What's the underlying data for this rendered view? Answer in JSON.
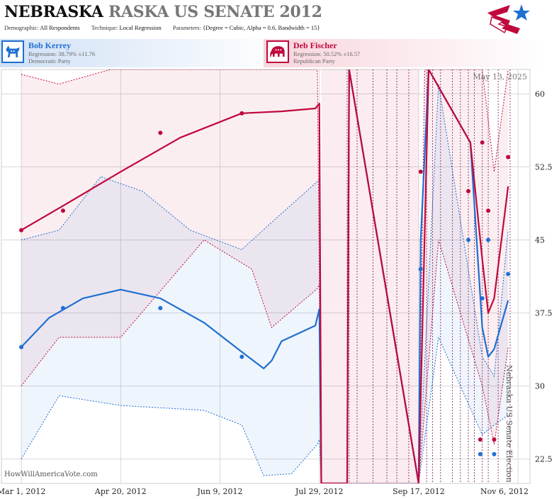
{
  "header": {
    "title_state": "NEBRASKA",
    "title_rest": "RASKA US SENATE 2012",
    "demographic_label": "Demographic:",
    "demographic_value": "All Respondents",
    "technique_label": "Technique:",
    "technique_value": "Local Regression",
    "parameters_label": "Parameters:",
    "parameters_value": "{Degree = Cubic, Alpha = 0.6, Bandwidth = 15}"
  },
  "candidates": [
    {
      "name": "Bob Kerrey",
      "regression": "Regression: 38.79% ±11.76",
      "party": "Democratic Party",
      "color": "#1f6fd1",
      "icon": "donkey-icon"
    },
    {
      "name": "Deb Fischer",
      "regression": "Regression: 50.52% ±16.57",
      "party": "Republican Party",
      "color": "#c0083c",
      "icon": "elephant-icon"
    }
  ],
  "chart_data": {
    "type": "scatter",
    "date_label": "May 13, 2025",
    "side_label": "Nebraska US Senate Election",
    "watermark": "HowWillAmericaVote.com",
    "x_ticks": [
      "Mar 1, 2012",
      "Apr 20, 2012",
      "Jun 9, 2012",
      "Jul 29, 2012",
      "Sep 17, 2012",
      "Nov 6, 2012"
    ],
    "y_ticks": [
      "22.5",
      "30",
      "37.5",
      "45",
      "52.5",
      "60"
    ],
    "ylim": [
      20,
      62.5
    ],
    "xlim": [
      "2012-02-20",
      "2012-11-12"
    ],
    "grid": true,
    "series": [
      {
        "name": "Bob Kerrey",
        "color": "#1f6fd1",
        "points": [
          {
            "x": "2012-03-01",
            "y": 34.0
          },
          {
            "x": "2012-03-22",
            "y": 38.0
          },
          {
            "x": "2012-05-10",
            "y": 38.0
          },
          {
            "x": "2012-06-20",
            "y": 33.0
          },
          {
            "x": "2012-09-18",
            "y": 42.0
          },
          {
            "x": "2012-10-12",
            "y": 45.0
          },
          {
            "x": "2012-10_18",
            "y": 23.0
          },
          {
            "x": "2012-10-19",
            "y": 39.0
          },
          {
            "x": "2012-10-22",
            "y": 45.0
          },
          {
            "x": "2012-10-25",
            "y": 23.0
          },
          {
            "x": "2012-11-01",
            "y": 41.5
          }
        ],
        "fit": [
          [
            "2012-03-01",
            34.0
          ],
          [
            "2012-03-15",
            37.0
          ],
          [
            "2012-04-01",
            39.0
          ],
          [
            "2012-04-20",
            39.9
          ],
          [
            "2012-05-10",
            39.0
          ],
          [
            "2012-06-01",
            36.5
          ],
          [
            "2012-06-20",
            33.5
          ],
          [
            "2012-07-01",
            31.8
          ],
          [
            "2012-07-05",
            32.6
          ],
          [
            "2012-07-10",
            34.6
          ],
          [
            "2012-07-27",
            36.2
          ],
          [
            "2012-07-29",
            37.9
          ],
          [
            "2012-07-30",
            20.0
          ],
          [
            "2012-08-12",
            20.0
          ],
          [
            "2012-08-13",
            62.5
          ],
          [
            "2012-09-17",
            20.0
          ],
          [
            "2012-09-18",
            45.0
          ],
          [
            "2012-09-22",
            62.5
          ],
          [
            "2012-10-13",
            55.0
          ],
          [
            "2012-10-19",
            36.0
          ],
          [
            "2012-10-22",
            33.0
          ],
          [
            "2012-10-25",
            33.8
          ],
          [
            "2012-11-01",
            38.8
          ]
        ],
        "band_upper": [
          [
            "2012-03-01",
            45.0
          ],
          [
            "2012-03-20",
            46.0
          ],
          [
            "2012-04-10",
            51.5
          ],
          [
            "2012-05-01",
            50.0
          ],
          [
            "2012-05-25",
            46.0
          ],
          [
            "2012-06-20",
            44.0
          ],
          [
            "2012-07-05",
            46.8
          ],
          [
            "2012-07-28",
            51.0
          ],
          [
            "2012-07-29",
            51.2
          ],
          [
            "2012-07-30",
            20.0
          ],
          [
            "2012-09-17",
            20.0
          ],
          [
            "2012-09-27",
            61.0
          ],
          [
            "2012-10-19",
            33.0
          ],
          [
            "2012-10-25",
            31.0
          ],
          [
            "2012-11-01",
            46.0
          ]
        ],
        "band_lower": [
          [
            "2012-03-01",
            22.5
          ],
          [
            "2012-03-20",
            29.0
          ],
          [
            "2012-04-20",
            28.0
          ],
          [
            "2012-06-01",
            27.5
          ],
          [
            "2012-06-20",
            26.0
          ],
          [
            "2012-07-01",
            20.8
          ],
          [
            "2012-07-15",
            21.0
          ],
          [
            "2012-07-28",
            24.0
          ],
          [
            "2012-07-29",
            24.5
          ],
          [
            "2012-07-30",
            20.0
          ],
          [
            "2012-09-17",
            20.0
          ],
          [
            "2012-09-27",
            35.0
          ],
          [
            "2012-10-19",
            25.0
          ],
          [
            "2012-10-25",
            26.0
          ],
          [
            "2012-11-01",
            27.0
          ]
        ]
      },
      {
        "name": "Deb Fischer",
        "color": "#c0083c",
        "points": [
          {
            "x": "2012-03-01",
            "y": 46.0
          },
          {
            "x": "2012-03-22",
            "y": 48.0
          },
          {
            "x": "2012-05-10",
            "y": 56.0
          },
          {
            "x": "2012-06-20",
            "y": 58.0
          },
          {
            "x": "2012-09-18",
            "y": 52.0
          },
          {
            "x": "2012-10-12",
            "y": 50.0
          },
          {
            "x": "2012-10-18",
            "y": 24.5
          },
          {
            "x": "2012-10-19",
            "y": 55.0
          },
          {
            "x": "2012-10-22",
            "y": 48.0
          },
          {
            "x": "2012-10-25",
            "y": 24.5
          },
          {
            "x": "2012-11-01",
            "y": 53.5
          }
        ],
        "fit": [
          [
            "2012-03-01",
            46.0
          ],
          [
            "2012-03-22",
            48.5
          ],
          [
            "2012-04-20",
            52.0
          ],
          [
            "2012-05-20",
            55.5
          ],
          [
            "2012-06-20",
            58.0
          ],
          [
            "2012-07-10",
            58.2
          ],
          [
            "2012-07-27",
            58.5
          ],
          [
            "2012-07-29",
            59.0
          ],
          [
            "2012-07-30",
            20.0
          ],
          [
            "2012-08-12",
            20.0
          ],
          [
            "2012-08-13",
            62.5
          ],
          [
            "2012-09-17",
            20.0
          ],
          [
            "2012-09-22",
            62.5
          ],
          [
            "2012-10-13",
            55.0
          ],
          [
            "2012-10-19",
            43.0
          ],
          [
            "2012-10-22",
            37.5
          ],
          [
            "2012-10-25",
            39.0
          ],
          [
            "2012-11-01",
            50.5
          ]
        ],
        "band_upper": [
          [
            "2012-03-01",
            62.0
          ],
          [
            "2012-03-20",
            61.0
          ],
          [
            "2012-04-15",
            62.5
          ],
          [
            "2012-07-28",
            62.5
          ],
          [
            "2012-07-30",
            20.0
          ],
          [
            "2012-09-17",
            20.0
          ],
          [
            "2012-09-20",
            62.5
          ],
          [
            "2012-10-19",
            62.5
          ],
          [
            "2012-10-25",
            52.0
          ],
          [
            "2012-11-01",
            62.5
          ]
        ],
        "band_lower": [
          [
            "2012-03-01",
            30.0
          ],
          [
            "2012-03-20",
            35.0
          ],
          [
            "2012-04-20",
            35.0
          ],
          [
            "2012-06-01",
            45.0
          ],
          [
            "2012-06-25",
            42.0
          ],
          [
            "2012-07-05",
            36.0
          ],
          [
            "2012-07-28",
            40.0
          ],
          [
            "2012-07-29",
            40.5
          ],
          [
            "2012-07-30",
            20.0
          ],
          [
            "2012-09-17",
            20.0
          ],
          [
            "2012-09-27",
            45.0
          ],
          [
            "2012-10-19",
            30.0
          ],
          [
            "2012-10-25",
            24.0
          ],
          [
            "2012-11-01",
            34.0
          ]
        ]
      }
    ],
    "poll_markers": [
      "2012-08-12",
      "2012-08-13",
      "2012-08-17",
      "2012-08-25",
      "2012-09-01",
      "2012-09-06",
      "2012-09-12",
      "2012-09-21",
      "2012-09-24",
      "2012-09-28",
      "2012-10-04",
      "2012-10-08",
      "2012-10-12",
      "2012-10-15",
      "2012-10-19",
      "2012-10-22",
      "2012-10-27",
      "2012-11-02"
    ],
    "gap_bands": [
      [
        "2012-07-30",
        "2012-08-12"
      ],
      [
        "2012-08-13",
        "2012-09-17"
      ]
    ]
  }
}
